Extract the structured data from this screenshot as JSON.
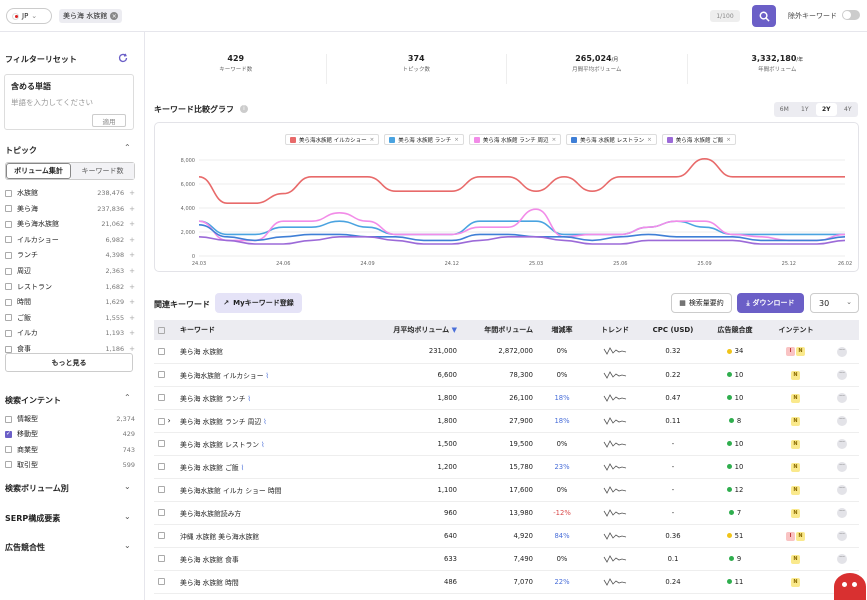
{
  "topbar": {
    "country": "JP",
    "query_chip": "美ら海 水族館",
    "counter": "1/100",
    "exclude_label": "除外キーワード",
    "colors": {
      "accent": "#6b5fc7"
    }
  },
  "sidebar": {
    "filter_reset": "フィルターリセット",
    "include_title": "含める単語",
    "include_placeholder": "単語を入力してください",
    "apply": "適用",
    "topic_title": "トピック",
    "topic_tabs": [
      "ボリューム集計",
      "キーワード数"
    ],
    "topics": [
      {
        "label": "水族館",
        "count": "238,476"
      },
      {
        "label": "美ら海",
        "count": "237,836"
      },
      {
        "label": "美ら海水族館",
        "count": "21,062"
      },
      {
        "label": "イルカショー",
        "count": "6,982"
      },
      {
        "label": "ランチ",
        "count": "4,398"
      },
      {
        "label": "周辺",
        "count": "2,363"
      },
      {
        "label": "レストラン",
        "count": "1,682"
      },
      {
        "label": "時間",
        "count": "1,629"
      },
      {
        "label": "ご飯",
        "count": "1,555"
      },
      {
        "label": "イルカ",
        "count": "1,193"
      },
      {
        "label": "食事",
        "count": "1,186"
      }
    ],
    "more": "もっと見る",
    "intent_title": "検索インテント",
    "intents": [
      {
        "label": "情報型",
        "count": "2,374",
        "checked": false
      },
      {
        "label": "移動型",
        "count": "429",
        "checked": true
      },
      {
        "label": "商業型",
        "count": "743",
        "checked": false
      },
      {
        "label": "取引型",
        "count": "599",
        "checked": false
      }
    ],
    "sections": [
      "検索ボリューム別",
      "SERP構成要素",
      "広告競合性"
    ]
  },
  "stats": [
    {
      "value": "429",
      "unit": "",
      "label": "キーワード数"
    },
    {
      "value": "374",
      "unit": "",
      "label": "トピック数"
    },
    {
      "value": "265,024",
      "unit": "/月",
      "label": "月間平均ボリューム"
    },
    {
      "value": "3,332,180",
      "unit": "/年",
      "label": "年間ボリューム"
    }
  ],
  "graph": {
    "title": "キーワード比較グラフ",
    "periods": [
      "6M",
      "1Y",
      "2Y",
      "4Y"
    ],
    "active_period": "2Y"
  },
  "chart_data": {
    "type": "line",
    "x": [
      "24.03",
      "24.04",
      "24.05",
      "24.06",
      "24.07",
      "24.08",
      "24.09",
      "24.10",
      "24.11",
      "24.12",
      "25.01",
      "25.02",
      "25.03",
      "25.04",
      "25.05",
      "25.06",
      "25.07",
      "25.08",
      "25.09",
      "25.10",
      "25.11",
      "25.12",
      "26.01",
      "26.02"
    ],
    "x_ticks": [
      "24.03",
      "24.06",
      "24.09",
      "24.12",
      "25.03",
      "25.06",
      "25.09",
      "25.12",
      "26.02"
    ],
    "ylim": [
      0,
      8000
    ],
    "y_ticks": [
      "0",
      "2,000",
      "4,000",
      "6,000",
      "8,000"
    ],
    "series": [
      {
        "name": "美ら海水族館 イルカショー",
        "color": "#e86a6a",
        "values": [
          6600,
          4400,
          4400,
          5200,
          6600,
          6600,
          6600,
          5400,
          5400,
          5400,
          6600,
          6600,
          5400,
          6600,
          5400,
          6600,
          6600,
          6600,
          8100,
          6600,
          6600,
          6600,
          6600,
          6600
        ]
      },
      {
        "name": "美ら海 水族館 ランチ",
        "color": "#4aa3e0",
        "values": [
          2900,
          1800,
          1800,
          2400,
          2400,
          2900,
          2400,
          1800,
          1800,
          1800,
          2900,
          2900,
          2900,
          1800,
          1800,
          1800,
          2400,
          2900,
          2400,
          1800,
          1800,
          1800,
          1800,
          1800
        ]
      },
      {
        "name": "美ら海 水族館 ランチ 周辺",
        "color": "#f28ce8",
        "values": [
          2900,
          1300,
          1300,
          2900,
          2900,
          3600,
          2900,
          1800,
          1800,
          1800,
          2400,
          2400,
          3900,
          1600,
          1800,
          1800,
          2400,
          2900,
          2900,
          1800,
          1600,
          1300,
          1300,
          1800
        ]
      },
      {
        "name": "美ら海 水族館 レストラン",
        "color": "#3f7fd6",
        "values": [
          2600,
          1600,
          1300,
          1600,
          1800,
          1800,
          1600,
          1600,
          1300,
          1300,
          1800,
          1800,
          1600,
          1600,
          1300,
          1600,
          1800,
          1600,
          1600,
          1600,
          1300,
          1300,
          1300,
          1600
        ]
      },
      {
        "name": "美ら海 水族館 ご飯",
        "color": "#9c6ad8",
        "values": [
          1600,
          1300,
          1000,
          1000,
          1300,
          1600,
          1600,
          1300,
          1000,
          1000,
          1300,
          1600,
          1600,
          1300,
          1000,
          1000,
          1300,
          1300,
          1300,
          1300,
          1000,
          1000,
          1000,
          1300
        ]
      }
    ]
  },
  "keywords": {
    "title": "関連キーワード",
    "my_button": "Myキーワード登録",
    "summary_button": "検索量要約",
    "download_button": "ダウンロード",
    "page_size": "30",
    "columns": [
      "キーワード",
      "月平均ボリューム",
      "年間ボリューム",
      "増減率",
      "トレンド",
      "CPC (USD)",
      "広告競合度",
      "インテント"
    ],
    "rows": [
      {
        "kw": "美ら海 水族館",
        "link": false,
        "expand": false,
        "m": "231,000",
        "y": "2,872,000",
        "g": "0%",
        "gc": "",
        "cpc": "0.32",
        "comp": "34",
        "dot": "#f0c419",
        "i": [
          "I",
          "N"
        ]
      },
      {
        "kw": "美ら海水族館 イルカショー",
        "link": true,
        "expand": false,
        "m": "6,600",
        "y": "78,300",
        "g": "0%",
        "gc": "",
        "cpc": "0.22",
        "comp": "10",
        "dot": "#2fae4e",
        "i": [
          "N"
        ]
      },
      {
        "kw": "美ら海 水族館 ランチ",
        "link": true,
        "expand": false,
        "m": "1,800",
        "y": "26,100",
        "g": "18%",
        "gc": "blue",
        "cpc": "0.47",
        "comp": "10",
        "dot": "#2fae4e",
        "i": [
          "N"
        ]
      },
      {
        "kw": "美ら海 水族館 ランチ 周辺",
        "link": true,
        "expand": true,
        "m": "1,800",
        "y": "27,900",
        "g": "18%",
        "gc": "blue",
        "cpc": "0.11",
        "comp": "8",
        "dot": "#2fae4e",
        "i": [
          "N"
        ]
      },
      {
        "kw": "美ら海 水族館 レストラン",
        "link": true,
        "expand": false,
        "m": "1,500",
        "y": "19,500",
        "g": "0%",
        "gc": "",
        "cpc": "-",
        "comp": "10",
        "dot": "#2fae4e",
        "i": [
          "N"
        ]
      },
      {
        "kw": "美ら海 水族館 ご飯",
        "link": true,
        "expand": false,
        "m": "1,200",
        "y": "15,780",
        "g": "23%",
        "gc": "blue",
        "cpc": "-",
        "comp": "10",
        "dot": "#2fae4e",
        "i": [
          "N"
        ]
      },
      {
        "kw": "美ら海水族館 イルカ ショー 時間",
        "link": false,
        "expand": false,
        "m": "1,100",
        "y": "17,600",
        "g": "0%",
        "gc": "",
        "cpc": "-",
        "comp": "12",
        "dot": "#2fae4e",
        "i": [
          "N"
        ]
      },
      {
        "kw": "美ら海水族館読み方",
        "link": false,
        "expand": false,
        "m": "960",
        "y": "13,980",
        "g": "-12%",
        "gc": "red",
        "cpc": "-",
        "comp": "7",
        "dot": "#2fae4e",
        "i": [
          "N"
        ]
      },
      {
        "kw": "沖縄 水族館 美ら海水族館",
        "link": false,
        "expand": false,
        "m": "640",
        "y": "4,920",
        "g": "84%",
        "gc": "blue",
        "cpc": "0.36",
        "comp": "51",
        "dot": "#f0c419",
        "i": [
          "I",
          "N"
        ]
      },
      {
        "kw": "美ら海 水族館 食事",
        "link": false,
        "expand": false,
        "m": "633",
        "y": "7,490",
        "g": "0%",
        "gc": "",
        "cpc": "0.1",
        "comp": "9",
        "dot": "#2fae4e",
        "i": [
          "N"
        ]
      },
      {
        "kw": "美ら海 水族館 時間",
        "link": false,
        "expand": false,
        "m": "486",
        "y": "7,070",
        "g": "22%",
        "gc": "blue",
        "cpc": "0.24",
        "comp": "11",
        "dot": "#2fae4e",
        "i": [
          "N"
        ]
      }
    ]
  }
}
